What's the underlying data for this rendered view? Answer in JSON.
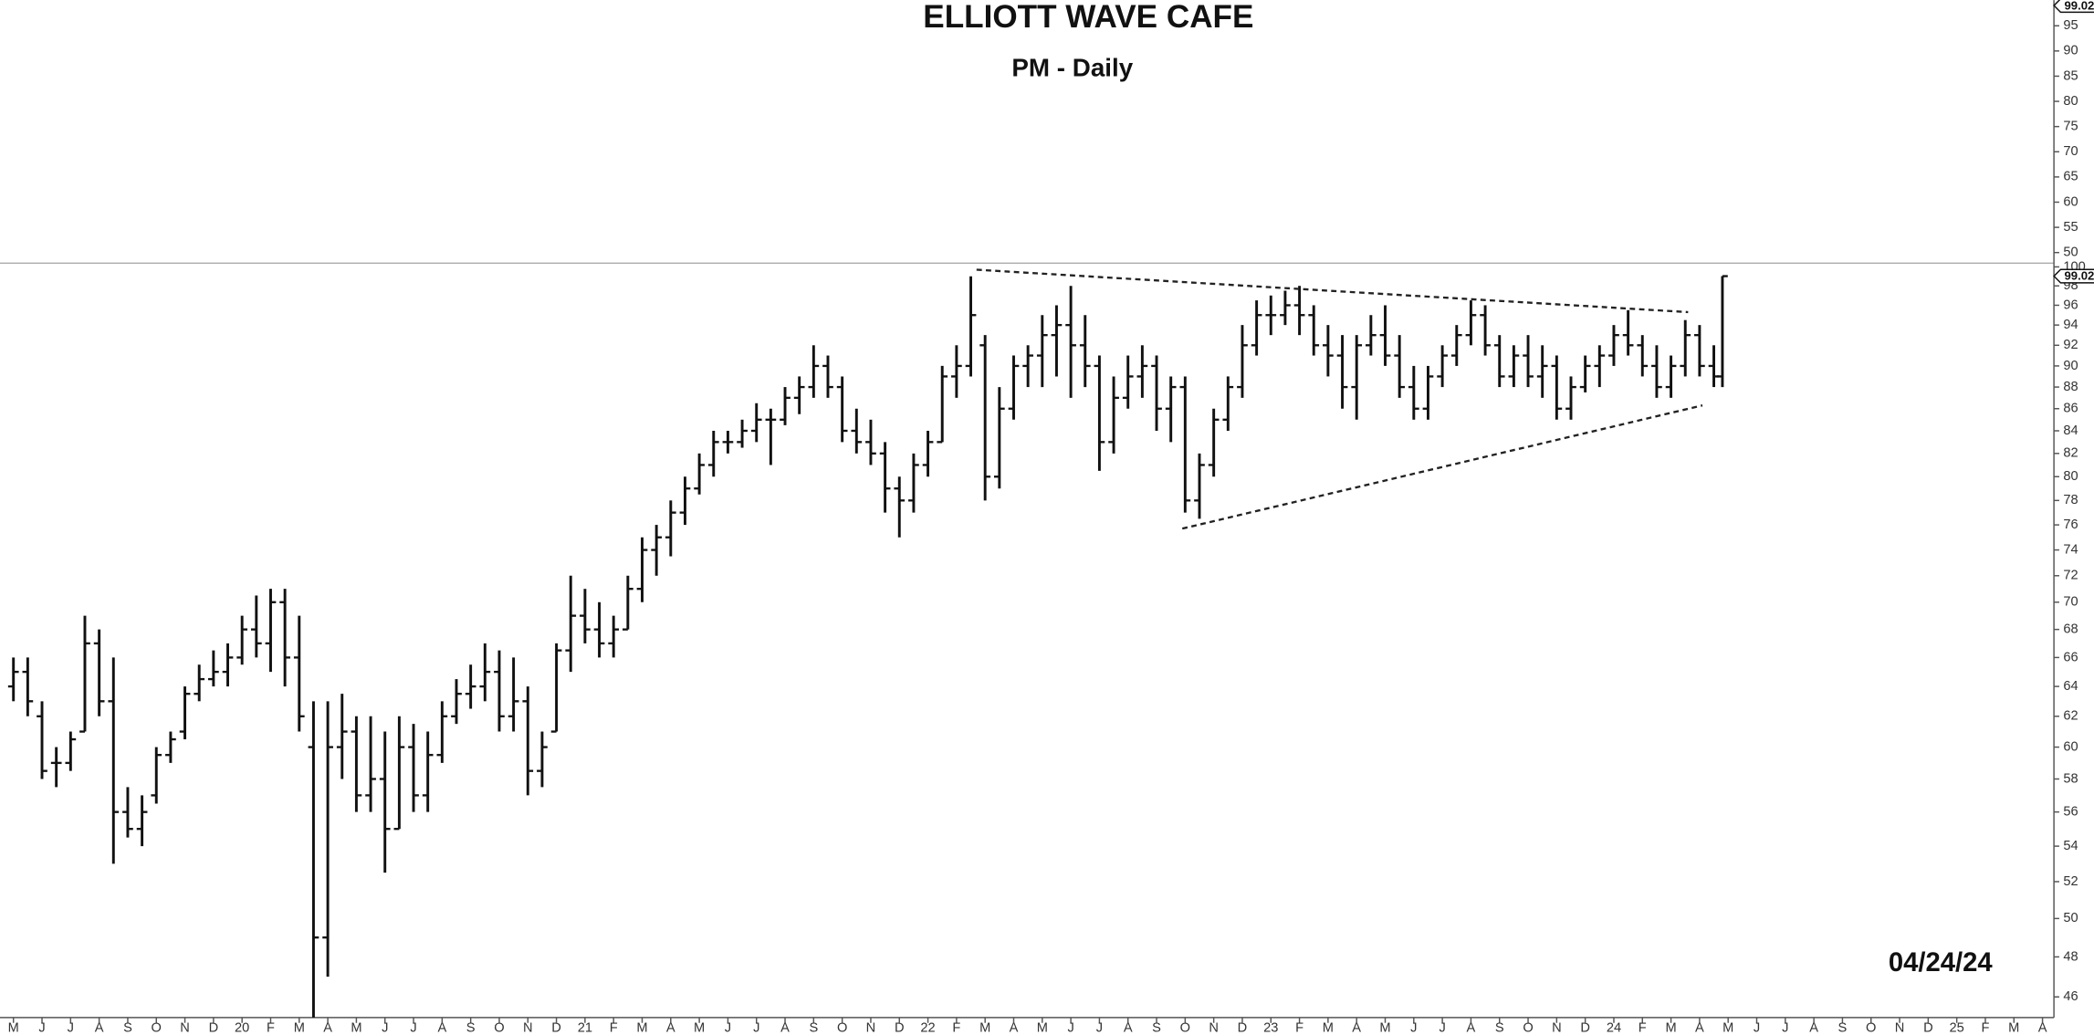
{
  "chart_data": {
    "type": "ohlc",
    "title": "ELLIOTT WAVE CAFE",
    "subtitle": "PM - Daily",
    "annotation": "04/24/24",
    "color": "#111111",
    "log_scale": true,
    "x": [
      0,
      0.5,
      1,
      1.5,
      2,
      2.5,
      3,
      3.5,
      4,
      4.5,
      5,
      5.5,
      6,
      6.5,
      7,
      7.5,
      8,
      8.5,
      9,
      9.5,
      10,
      10.5,
      11,
      11.5,
      12,
      12.5,
      13,
      13.5,
      14,
      14.5,
      15,
      15.5,
      16,
      16.5,
      17,
      17.5,
      18,
      18.5,
      19,
      19.5,
      20,
      20.5,
      21,
      21.5,
      22,
      22.5,
      23,
      23.5,
      24,
      24.5,
      25,
      25.5,
      26,
      26.5,
      27,
      27.5,
      28,
      28.5,
      29,
      29.5,
      30,
      30.5,
      31,
      31.5,
      32,
      32.5,
      33,
      33.5,
      34,
      34.5,
      35,
      35.5,
      36,
      36.5,
      37,
      37.5,
      38,
      38.5,
      39,
      39.5,
      40,
      40.5,
      41,
      41.5,
      42,
      42.5,
      43,
      43.5,
      44,
      44.5,
      45,
      45.5,
      46,
      46.5,
      47,
      47.5,
      48,
      48.5,
      49,
      49.5,
      50,
      50.5,
      51,
      51.5,
      52,
      52.5,
      53,
      53.5,
      54,
      54.5,
      55,
      55.5,
      56,
      56.5,
      57,
      57.5,
      58,
      58.5,
      59,
      59.5,
      59.8
    ],
    "open": [
      64,
      65,
      62,
      59,
      59,
      61,
      67,
      63,
      56,
      55,
      57,
      59.5,
      61,
      63.5,
      64.5,
      65,
      66,
      68,
      67,
      70,
      66,
      60,
      49,
      60,
      61,
      57,
      58,
      55,
      60,
      57,
      59.5,
      62,
      63.5,
      64,
      65,
      62,
      63,
      58.5,
      61,
      66.5,
      69,
      68,
      67,
      68,
      71,
      74,
      75,
      77,
      79,
      81,
      83,
      83,
      84,
      85,
      85,
      87,
      88,
      90,
      88,
      84,
      83,
      82,
      79,
      78,
      81,
      83,
      89,
      90,
      92,
      80,
      86,
      90,
      91,
      93,
      94,
      92,
      90,
      83,
      87,
      89,
      90,
      86,
      88,
      78,
      81,
      85,
      88,
      92,
      95,
      95,
      96,
      95,
      92,
      91,
      88,
      92,
      93,
      91,
      88,
      86,
      89,
      91,
      93,
      95,
      92,
      89,
      91,
      89,
      90,
      86,
      88,
      90,
      91,
      93,
      92,
      90,
      88,
      90,
      93,
      90,
      89
    ],
    "high": [
      66,
      66,
      63,
      60,
      61,
      69,
      68,
      66,
      57.5,
      57,
      60,
      61,
      64,
      65.5,
      66.5,
      67,
      69,
      70.5,
      71,
      71,
      69,
      63,
      63,
      63.5,
      62,
      62,
      61,
      62,
      61.5,
      61,
      63,
      64.5,
      65.5,
      67,
      66.5,
      66,
      64,
      61,
      67,
      72,
      71,
      70,
      69,
      72,
      75,
      76,
      78,
      80,
      82,
      84,
      84,
      85,
      86.5,
      86,
      88,
      89,
      92,
      91,
      89,
      86,
      85,
      83,
      80,
      82,
      84,
      90,
      92,
      99,
      93,
      88,
      91,
      92,
      95,
      96,
      98,
      95,
      91,
      89,
      91,
      92,
      91,
      89,
      89,
      82,
      86,
      89,
      94,
      96.5,
      97,
      97.5,
      98,
      96,
      94,
      93,
      93,
      95,
      96,
      93,
      90,
      90,
      92,
      94,
      96.5,
      96,
      93,
      92,
      93,
      92,
      91,
      89,
      91,
      92,
      94,
      95.5,
      93,
      92,
      91,
      94.5,
      94,
      92,
      99.02
    ],
    "low": [
      63,
      62,
      58,
      57.5,
      58.5,
      61,
      62,
      53,
      54.5,
      54,
      56.5,
      59,
      60.5,
      63,
      64,
      64,
      65.5,
      66,
      65,
      64,
      61,
      45,
      47,
      58,
      56,
      56,
      52.5,
      55,
      56,
      56,
      59,
      61.5,
      62.5,
      63,
      61,
      61,
      57,
      57.5,
      61,
      65,
      67,
      66,
      66,
      68,
      70,
      72,
      73.5,
      76,
      78.5,
      80,
      82,
      82.5,
      83,
      81,
      84.5,
      85.5,
      87,
      87,
      83,
      82,
      81,
      77,
      75,
      77,
      80,
      83,
      87,
      89,
      78,
      79,
      85,
      88,
      88,
      89,
      87,
      88,
      80.5,
      82,
      86,
      87,
      84,
      83,
      77,
      76.5,
      80,
      84,
      87,
      91,
      93,
      94,
      93,
      91,
      89,
      86,
      85,
      91,
      90,
      87,
      85,
      85,
      88,
      90,
      92,
      91,
      88,
      88,
      88,
      87,
      85,
      85,
      87.5,
      88,
      90,
      91,
      89,
      87,
      87,
      89,
      89,
      88,
      88
    ],
    "close": [
      65,
      63,
      58.5,
      59,
      60.5,
      67,
      63,
      56,
      55,
      56,
      59.5,
      60.5,
      63.5,
      64.5,
      65,
      66,
      68,
      67,
      70,
      66,
      62,
      49,
      60,
      61,
      57,
      58,
      55,
      60,
      57,
      59.5,
      62,
      63.5,
      64,
      65,
      62,
      63,
      58.5,
      60,
      66.5,
      69,
      68,
      67,
      68,
      71,
      74,
      75,
      77,
      79,
      81,
      83,
      83,
      84,
      85,
      85,
      87,
      88,
      90,
      88,
      84,
      83,
      82,
      79,
      78,
      81,
      83,
      89,
      90,
      95,
      80,
      86,
      90,
      91,
      93,
      94,
      92,
      90,
      83,
      87,
      89,
      90,
      86,
      88,
      78,
      81,
      85,
      88,
      92,
      95,
      95,
      96,
      95,
      92,
      91,
      88,
      92,
      93,
      91,
      88,
      86,
      89,
      91,
      93,
      95,
      92,
      89,
      91,
      89,
      90,
      86,
      88,
      90,
      91,
      93,
      92,
      90,
      88,
      90,
      93,
      90,
      89,
      99.02
    ],
    "xlim": [
      -0.47,
      71.4
    ],
    "xticks": [
      {
        "value": 0,
        "label": "M"
      },
      {
        "value": 1,
        "label": "J"
      },
      {
        "value": 2,
        "label": "J"
      },
      {
        "value": 3,
        "label": "A"
      },
      {
        "value": 4,
        "label": "S"
      },
      {
        "value": 5,
        "label": "O"
      },
      {
        "value": 6,
        "label": "N"
      },
      {
        "value": 7,
        "label": "D"
      },
      {
        "value": 8,
        "label": "20"
      },
      {
        "value": 9,
        "label": "F"
      },
      {
        "value": 10,
        "label": "M"
      },
      {
        "value": 11,
        "label": "A"
      },
      {
        "value": 12,
        "label": "M"
      },
      {
        "value": 13,
        "label": "J"
      },
      {
        "value": 14,
        "label": "J"
      },
      {
        "value": 15,
        "label": "A"
      },
      {
        "value": 16,
        "label": "S"
      },
      {
        "value": 17,
        "label": "O"
      },
      {
        "value": 18,
        "label": "N"
      },
      {
        "value": 19,
        "label": "D"
      },
      {
        "value": 20,
        "label": "21"
      },
      {
        "value": 21,
        "label": "F"
      },
      {
        "value": 22,
        "label": "M"
      },
      {
        "value": 23,
        "label": "A"
      },
      {
        "value": 24,
        "label": "M"
      },
      {
        "value": 25,
        "label": "J"
      },
      {
        "value": 26,
        "label": "J"
      },
      {
        "value": 27,
        "label": "A"
      },
      {
        "value": 28,
        "label": "S"
      },
      {
        "value": 29,
        "label": "O"
      },
      {
        "value": 30,
        "label": "N"
      },
      {
        "value": 31,
        "label": "D"
      },
      {
        "value": 32,
        "label": "22"
      },
      {
        "value": 33,
        "label": "F"
      },
      {
        "value": 34,
        "label": "M"
      },
      {
        "value": 35,
        "label": "A"
      },
      {
        "value": 36,
        "label": "M"
      },
      {
        "value": 37,
        "label": "J"
      },
      {
        "value": 38,
        "label": "J"
      },
      {
        "value": 39,
        "label": "A"
      },
      {
        "value": 40,
        "label": "S"
      },
      {
        "value": 41,
        "label": "O"
      },
      {
        "value": 42,
        "label": "N"
      },
      {
        "value": 43,
        "label": "D"
      },
      {
        "value": 44,
        "label": "23"
      },
      {
        "value": 45,
        "label": "F"
      },
      {
        "value": 46,
        "label": "M"
      },
      {
        "value": 47,
        "label": "A"
      },
      {
        "value": 48,
        "label": "M"
      },
      {
        "value": 49,
        "label": "J"
      },
      {
        "value": 50,
        "label": "J"
      },
      {
        "value": 51,
        "label": "A"
      },
      {
        "value": 52,
        "label": "S"
      },
      {
        "value": 53,
        "label": "O"
      },
      {
        "value": 54,
        "label": "N"
      },
      {
        "value": 55,
        "label": "D"
      },
      {
        "value": 56,
        "label": "24"
      },
      {
        "value": 57,
        "label": "F"
      },
      {
        "value": 58,
        "label": "M"
      },
      {
        "value": 59,
        "label": "A"
      },
      {
        "value": 60,
        "label": "M"
      },
      {
        "value": 61,
        "label": "J"
      },
      {
        "value": 62,
        "label": "J"
      },
      {
        "value": 63,
        "label": "A"
      },
      {
        "value": 64,
        "label": "S"
      },
      {
        "value": 65,
        "label": "O"
      },
      {
        "value": 66,
        "label": "N"
      },
      {
        "value": 67,
        "label": "D"
      },
      {
        "value": 68,
        "label": "25"
      },
      {
        "value": 69,
        "label": "F"
      },
      {
        "value": 70,
        "label": "M"
      },
      {
        "value": 71,
        "label": "A"
      }
    ],
    "ylim": [
      45,
      100.4
    ],
    "yticks": [
      46,
      48,
      50,
      52,
      54,
      56,
      58,
      60,
      62,
      64,
      66,
      68,
      70,
      72,
      74,
      76,
      78,
      80,
      82,
      84,
      86,
      88,
      90,
      92,
      94,
      96,
      98,
      100
    ],
    "trendlines": [
      {
        "x": [
          33.7,
          58.6
        ],
        "y": [
          99.7,
          95.3
        ]
      },
      {
        "x": [
          40.9,
          59.1
        ],
        "y": [
          75.7,
          86.3
        ]
      }
    ],
    "upper_panel": {
      "ylim": [
        47.9,
        100.1
      ],
      "yticks": [
        50,
        55,
        60,
        65,
        70,
        75,
        80,
        85,
        90,
        95
      ]
    }
  }
}
